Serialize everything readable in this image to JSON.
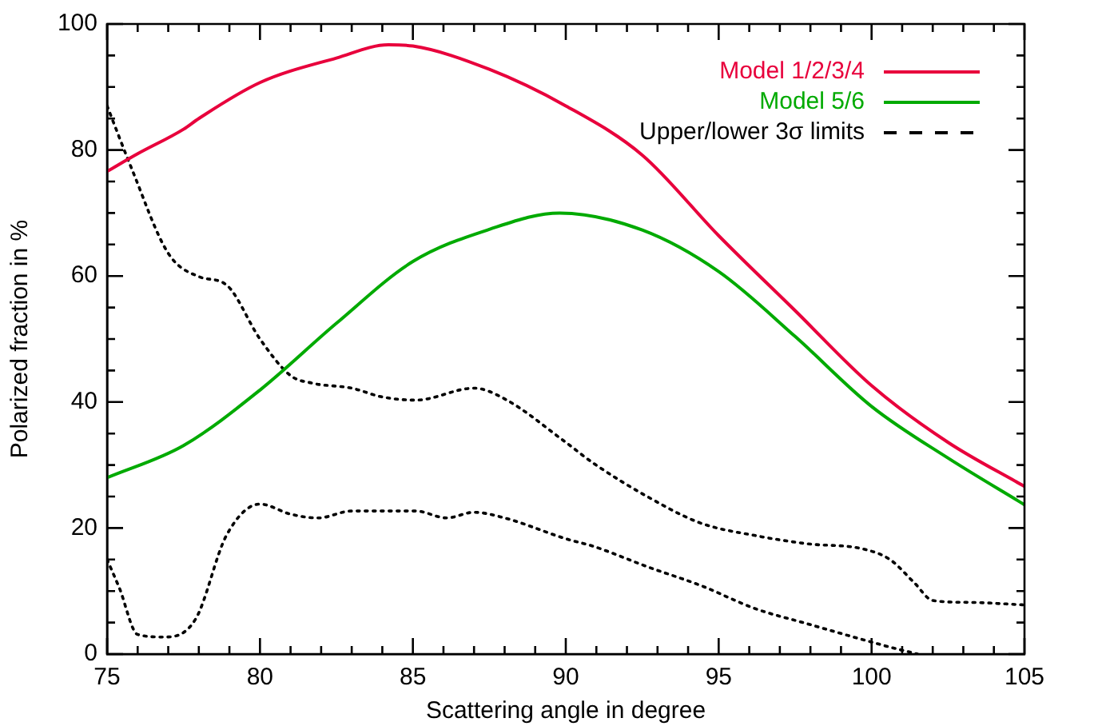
{
  "chart_data": {
    "type": "line",
    "xlabel": "Scattering angle in degree",
    "ylabel": "Polarized fraction in %",
    "xlim": [
      75,
      105
    ],
    "ylim": [
      0,
      100
    ],
    "xticks": [
      75,
      {
        "value": 76,
        "label": null
      },
      {
        "value": 77,
        "label": null
      },
      {
        "value": 78,
        "label": null
      },
      {
        "value": 79,
        "label": null
      },
      80,
      {
        "value": 81,
        "label": null
      },
      {
        "value": 82,
        "label": null
      },
      {
        "value": 83,
        "label": null
      },
      {
        "value": 84,
        "label": null
      },
      85,
      {
        "value": 86,
        "label": null
      },
      {
        "value": 87,
        "label": null
      },
      {
        "value": 88,
        "label": null
      },
      {
        "value": 89,
        "label": null
      },
      90,
      {
        "value": 91,
        "label": null
      },
      {
        "value": 92,
        "label": null
      },
      {
        "value": 93,
        "label": null
      },
      {
        "value": 94,
        "label": null
      },
      95,
      {
        "value": 96,
        "label": null
      },
      {
        "value": 97,
        "label": null
      },
      {
        "value": 98,
        "label": null
      },
      {
        "value": 99,
        "label": null
      },
      100,
      {
        "value": 101,
        "label": null
      },
      {
        "value": 102,
        "label": null
      },
      {
        "value": 103,
        "label": null
      },
      {
        "value": 104,
        "label": null
      },
      105
    ],
    "yticks": [
      0,
      {
        "value": 5,
        "label": null
      },
      {
        "value": 10,
        "label": null
      },
      {
        "value": 15,
        "label": null
      },
      20,
      {
        "value": 25,
        "label": null
      },
      {
        "value": 30,
        "label": null
      },
      {
        "value": 35,
        "label": null
      },
      40,
      {
        "value": 45,
        "label": null
      },
      {
        "value": 50,
        "label": null
      },
      {
        "value": 55,
        "label": null
      },
      60,
      {
        "value": 65,
        "label": null
      },
      {
        "value": 70,
        "label": null
      },
      {
        "value": 75,
        "label": null
      },
      80,
      {
        "value": 85,
        "label": null
      },
      {
        "value": 90,
        "label": null
      },
      {
        "value": 95,
        "label": null
      },
      100
    ],
    "grid": false,
    "legend": "top right",
    "marker": "none",
    "series": [
      {
        "name": "Model 1/2/3/4",
        "color": "#e8003c",
        "line_style": "solid",
        "x": [
          75,
          76,
          77.5,
          78,
          80,
          82.5,
          84.2,
          85,
          87.5,
          90,
          92.5,
          95,
          97.5,
          100,
          102.5,
          105
        ],
        "values": [
          76.6,
          79.4,
          83.3,
          85,
          90.7,
          94.6,
          96.7,
          96.5,
          92.8,
          87,
          79.2,
          66.4,
          54.5,
          42.6,
          33.6,
          26.6
        ]
      },
      {
        "name": "Model 5/6",
        "color": "#00aa00",
        "line_style": "solid",
        "x": [
          75,
          77.5,
          80,
          82.5,
          85,
          87.5,
          89.8,
          92.5,
          95,
          97.5,
          100,
          102.5,
          105
        ],
        "values": [
          28,
          33.1,
          41.9,
          52.5,
          62.3,
          67.4,
          70,
          67.3,
          60.7,
          50.4,
          39.3,
          31.1,
          23.7
        ]
      },
      {
        "name": "Upper/lower 3σ limits",
        "color": "#000000",
        "line_style": "dotted",
        "x": [
          75,
          75.8,
          77,
          78,
          78.9,
          80,
          81,
          81.7,
          83,
          84,
          85.1,
          87,
          88,
          90,
          90.9,
          92.7,
          94.4,
          96.2,
          97.9,
          99.7,
          100.6,
          101.4,
          102,
          103.2,
          105
        ],
        "values": [
          87,
          77.1,
          63.6,
          59.9,
          58.6,
          50,
          44.2,
          43,
          42.2,
          40.8,
          40.3,
          42.2,
          40.5,
          33.6,
          30.3,
          24.9,
          20.8,
          18.8,
          17.5,
          16.7,
          15,
          11.3,
          8.5,
          8.2,
          7.8
        ]
      },
      {
        "color": "#000000",
        "line_style": "dotted",
        "x": [
          75,
          75.4,
          76,
          76.9,
          77.9,
          78.9,
          80,
          81,
          81.9,
          83,
          85.1,
          86.1,
          87,
          88,
          90,
          90.9,
          92.7,
          94.4,
          96.2,
          97.9,
          99.7,
          100.6,
          101.5
        ],
        "values": [
          15,
          10.5,
          3.1,
          2.7,
          5.6,
          18.8,
          23.8,
          22.2,
          21.6,
          22.7,
          22.7,
          21.6,
          22.5,
          21.6,
          18.3,
          17.1,
          13.8,
          10.9,
          7.2,
          4.8,
          2.3,
          1.1,
          0
        ]
      }
    ]
  }
}
